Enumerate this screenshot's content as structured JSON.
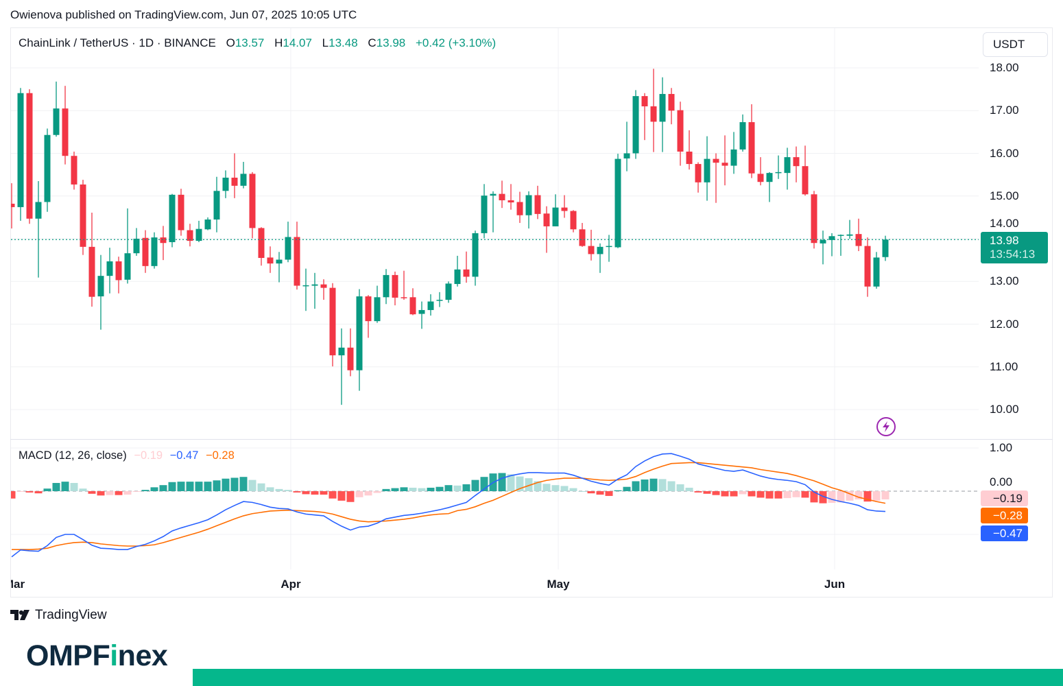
{
  "header": {
    "published": "Owienova published on TradingView.com, Jun 07, 2025 10:05 UTC"
  },
  "legend": {
    "symbol": "ChainLink / TetherUS · 1D · BINANCE",
    "o_label": "O",
    "o_value": "13.57",
    "h_label": "H",
    "h_value": "14.07",
    "l_label": "L",
    "l_value": "13.48",
    "c_label": "C",
    "c_value": "13.98",
    "change": "+0.42 (+3.10%)"
  },
  "currency_button": "USDT",
  "price_tag": {
    "price": "13.98",
    "countdown": "13:54:13"
  },
  "macd_legend": {
    "title": "MACD (12, 26, close)",
    "histogram": "−0.19",
    "macd": "−0.47",
    "signal": "−0.28"
  },
  "macd_tags": {
    "histogram": "−0.19",
    "signal": "−0.28",
    "macd": "−0.47"
  },
  "footer": {
    "tv_brand": "TradingView",
    "omp_prefix": "OMPF",
    "omp_i": "i",
    "omp_suffix": "nex"
  },
  "colors": {
    "up": "#089981",
    "down": "#f23645",
    "macd": "#2962ff",
    "signal": "#ff6d00",
    "hist_up_strong": "#26a69a",
    "hist_up_weak": "#b2dfdb",
    "hist_down_strong": "#ff5252",
    "hist_down_weak": "#ffcdd2",
    "brand_green": "#05b78c",
    "bolt": "#9c27b0"
  },
  "icons": {
    "tv_logo": "tradingview-logo-icon",
    "bolt": "lightning-icon"
  },
  "chart_data": [
    {
      "type": "candlestick",
      "title": "ChainLink / TetherUS · 1D · BINANCE",
      "first_date": "2025-03-01",
      "ylim": [
        9.4,
        18.65
      ],
      "y_ticks": [
        "10.00",
        "11.00",
        "12.00",
        "13.00",
        "14.00",
        "15.00",
        "16.00",
        "17.00",
        "18.00"
      ],
      "y_tick_values": [
        10,
        11,
        12,
        13,
        14,
        15,
        16,
        17,
        18
      ],
      "x_ticks": [
        {
          "label": "Mar",
          "index": 0
        },
        {
          "label": "Apr",
          "index": 31
        },
        {
          "label": "May",
          "index": 61
        },
        {
          "label": "Jun",
          "index": 92
        }
      ],
      "last_price": 13.98,
      "ohlc": [
        [
          14.82,
          15.3,
          14.24,
          14.74
        ],
        [
          14.74,
          17.53,
          14.42,
          17.41
        ],
        [
          17.41,
          17.5,
          14.35,
          14.47
        ],
        [
          14.47,
          15.35,
          13.09,
          14.86
        ],
        [
          14.86,
          16.58,
          14.63,
          16.43
        ],
        [
          16.43,
          17.68,
          16.39,
          17.05
        ],
        [
          17.05,
          17.58,
          15.74,
          15.94
        ],
        [
          15.94,
          16.04,
          15.15,
          15.27
        ],
        [
          15.27,
          15.38,
          13.62,
          13.81
        ],
        [
          13.81,
          14.61,
          12.41,
          12.64
        ],
        [
          12.65,
          13.62,
          11.87,
          13.13
        ],
        [
          13.13,
          13.79,
          12.72,
          13.47
        ],
        [
          13.47,
          13.58,
          12.72,
          13.03
        ],
        [
          13.04,
          14.71,
          12.95,
          13.66
        ],
        [
          13.66,
          14.25,
          13.6,
          14.0
        ],
        [
          14.02,
          14.2,
          13.2,
          13.36
        ],
        [
          13.36,
          14.15,
          13.3,
          14.03
        ],
        [
          14.03,
          14.3,
          13.5,
          13.9
        ],
        [
          13.92,
          15.05,
          13.8,
          15.03
        ],
        [
          15.03,
          15.17,
          14.07,
          14.2
        ],
        [
          14.2,
          14.35,
          13.82,
          13.95
        ],
        [
          13.95,
          14.42,
          13.92,
          14.23
        ],
        [
          14.22,
          14.5,
          14.2,
          14.45
        ],
        [
          14.45,
          15.45,
          14.15,
          15.12
        ],
        [
          15.12,
          15.6,
          14.95,
          15.43
        ],
        [
          15.43,
          16.0,
          14.95,
          15.24
        ],
        [
          15.24,
          15.8,
          15.18,
          15.52
        ],
        [
          15.52,
          15.56,
          14.01,
          14.25
        ],
        [
          14.25,
          14.27,
          13.37,
          13.55
        ],
        [
          13.56,
          13.82,
          13.2,
          13.42
        ],
        [
          13.42,
          13.69,
          12.98,
          13.51
        ],
        [
          13.51,
          14.4,
          13.45,
          14.04
        ],
        [
          14.04,
          14.4,
          12.81,
          12.9
        ],
        [
          12.9,
          13.3,
          12.31,
          12.91
        ],
        [
          12.9,
          13.2,
          12.36,
          12.93
        ],
        [
          12.93,
          13.05,
          12.57,
          12.85
        ],
        [
          12.85,
          12.96,
          11.01,
          11.27
        ],
        [
          11.27,
          11.9,
          10.11,
          11.45
        ],
        [
          11.45,
          11.9,
          10.78,
          10.92
        ],
        [
          10.92,
          12.82,
          10.44,
          12.65
        ],
        [
          12.65,
          12.68,
          11.68,
          12.07
        ],
        [
          12.07,
          12.9,
          12.03,
          12.63
        ],
        [
          12.63,
          13.29,
          12.47,
          13.15
        ],
        [
          13.15,
          13.23,
          12.44,
          12.62
        ],
        [
          12.63,
          13.25,
          12.57,
          12.62
        ],
        [
          12.63,
          12.84,
          12.21,
          12.23
        ],
        [
          12.24,
          12.53,
          11.89,
          12.33
        ],
        [
          12.33,
          12.7,
          12.2,
          12.53
        ],
        [
          12.56,
          12.75,
          12.4,
          12.57
        ],
        [
          12.57,
          13.0,
          12.5,
          12.95
        ],
        [
          12.94,
          13.6,
          12.88,
          13.28
        ],
        [
          13.28,
          13.7,
          12.97,
          13.11
        ],
        [
          13.11,
          14.19,
          12.9,
          14.13
        ],
        [
          14.13,
          15.28,
          14.01,
          15.01
        ],
        [
          15.01,
          15.11,
          14.15,
          15.05
        ],
        [
          15.05,
          15.36,
          14.72,
          14.9
        ],
        [
          14.9,
          15.28,
          14.68,
          14.85
        ],
        [
          14.86,
          15.1,
          14.37,
          14.55
        ],
        [
          14.55,
          15.11,
          14.24,
          15.02
        ],
        [
          15.02,
          15.24,
          14.46,
          14.58
        ],
        [
          14.59,
          14.76,
          13.67,
          14.29
        ],
        [
          14.29,
          15.04,
          14.29,
          14.73
        ],
        [
          14.73,
          15.02,
          14.49,
          14.65
        ],
        [
          14.65,
          14.67,
          14.15,
          14.22
        ],
        [
          14.22,
          14.37,
          13.81,
          13.83
        ],
        [
          13.83,
          14.21,
          13.49,
          13.64
        ],
        [
          13.64,
          13.89,
          13.2,
          13.81
        ],
        [
          13.82,
          14.09,
          13.46,
          13.83
        ],
        [
          13.8,
          15.99,
          13.78,
          15.87
        ],
        [
          15.88,
          16.74,
          15.58,
          16.0
        ],
        [
          16.0,
          17.48,
          15.87,
          17.34
        ],
        [
          17.34,
          17.41,
          16.31,
          17.1
        ],
        [
          17.1,
          17.98,
          16.03,
          16.74
        ],
        [
          16.74,
          17.78,
          16.03,
          17.39
        ],
        [
          17.39,
          17.53,
          16.68,
          17.0
        ],
        [
          17.01,
          17.21,
          15.71,
          16.04
        ],
        [
          16.04,
          16.54,
          15.62,
          15.75
        ],
        [
          15.75,
          15.79,
          15.08,
          15.32
        ],
        [
          15.32,
          16.4,
          14.89,
          15.87
        ],
        [
          15.87,
          16.0,
          14.84,
          15.78
        ],
        [
          15.78,
          16.42,
          15.25,
          15.71
        ],
        [
          15.71,
          16.5,
          15.52,
          16.09
        ],
        [
          16.09,
          16.91,
          16.04,
          16.73
        ],
        [
          16.73,
          17.15,
          15.42,
          15.53
        ],
        [
          15.52,
          15.91,
          15.25,
          15.33
        ],
        [
          15.33,
          15.56,
          14.86,
          15.54
        ],
        [
          15.55,
          15.95,
          15.4,
          15.56
        ],
        [
          15.54,
          16.13,
          15.15,
          15.91
        ],
        [
          15.91,
          16.16,
          15.32,
          15.7
        ],
        [
          15.7,
          16.18,
          15.01,
          15.04
        ],
        [
          15.04,
          15.12,
          13.77,
          13.9
        ],
        [
          13.89,
          14.19,
          13.4,
          13.97
        ],
        [
          13.97,
          14.13,
          13.59,
          14.06
        ],
        [
          14.08,
          14.1,
          13.6,
          14.09
        ],
        [
          14.07,
          14.44,
          14.0,
          14.1
        ],
        [
          14.11,
          14.47,
          13.71,
          13.83
        ],
        [
          13.83,
          14.03,
          12.64,
          12.88
        ],
        [
          12.88,
          13.69,
          12.83,
          13.56
        ],
        [
          13.57,
          14.07,
          13.48,
          13.98
        ]
      ]
    },
    {
      "type": "line",
      "title": "MACD (12, 26, close)",
      "ylim": [
        -1.8,
        1.2
      ],
      "y_ticks": [
        "1.00",
        "0.00"
      ],
      "y_tick_values": [
        1,
        0
      ],
      "series": [
        {
          "name": "MACD",
          "values": [
            -1.52,
            -1.36,
            -1.38,
            -1.39,
            -1.26,
            -1.07,
            -1.0,
            -1.0,
            -1.12,
            -1.25,
            -1.32,
            -1.33,
            -1.35,
            -1.35,
            -1.28,
            -1.23,
            -1.15,
            -1.05,
            -0.92,
            -0.85,
            -0.79,
            -0.73,
            -0.66,
            -0.55,
            -0.43,
            -0.33,
            -0.24,
            -0.26,
            -0.31,
            -0.37,
            -0.4,
            -0.41,
            -0.48,
            -0.53,
            -0.55,
            -0.57,
            -0.7,
            -0.81,
            -0.9,
            -0.83,
            -0.81,
            -0.74,
            -0.64,
            -0.6,
            -0.56,
            -0.54,
            -0.51,
            -0.47,
            -0.43,
            -0.38,
            -0.32,
            -0.26,
            -0.1,
            0.05,
            0.2,
            0.3,
            0.36,
            0.4,
            0.43,
            0.43,
            0.42,
            0.42,
            0.42,
            0.37,
            0.3,
            0.23,
            0.18,
            0.14,
            0.28,
            0.38,
            0.57,
            0.7,
            0.8,
            0.86,
            0.87,
            0.81,
            0.74,
            0.63,
            0.58,
            0.53,
            0.48,
            0.46,
            0.49,
            0.42,
            0.35,
            0.3,
            0.27,
            0.25,
            0.22,
            0.15,
            -0.02,
            -0.12,
            -0.19,
            -0.24,
            -0.28,
            -0.33,
            -0.43,
            -0.46,
            -0.47
          ]
        },
        {
          "name": "Signal",
          "values": [
            -1.35,
            -1.35,
            -1.35,
            -1.34,
            -1.32,
            -1.26,
            -1.22,
            -1.19,
            -1.18,
            -1.19,
            -1.22,
            -1.24,
            -1.26,
            -1.27,
            -1.27,
            -1.26,
            -1.24,
            -1.19,
            -1.13,
            -1.07,
            -1.01,
            -0.95,
            -0.88,
            -0.8,
            -0.72,
            -0.64,
            -0.57,
            -0.52,
            -0.49,
            -0.46,
            -0.45,
            -0.44,
            -0.45,
            -0.46,
            -0.47,
            -0.49,
            -0.53,
            -0.59,
            -0.65,
            -0.69,
            -0.71,
            -0.7,
            -0.69,
            -0.67,
            -0.65,
            -0.62,
            -0.58,
            -0.55,
            -0.53,
            -0.52,
            -0.45,
            -0.42,
            -0.36,
            -0.28,
            -0.21,
            -0.12,
            -0.03,
            0.06,
            0.13,
            0.2,
            0.25,
            0.28,
            0.3,
            0.3,
            0.3,
            0.28,
            0.26,
            0.25,
            0.26,
            0.28,
            0.34,
            0.43,
            0.51,
            0.58,
            0.64,
            0.65,
            0.66,
            0.66,
            0.64,
            0.62,
            0.6,
            0.58,
            0.56,
            0.54,
            0.5,
            0.47,
            0.44,
            0.41,
            0.36,
            0.3,
            0.24,
            0.16,
            0.08,
            0.02,
            -0.06,
            -0.14,
            -0.19,
            -0.24,
            -0.28
          ]
        }
      ],
      "histogram_rule": "MACD - Signal"
    }
  ]
}
